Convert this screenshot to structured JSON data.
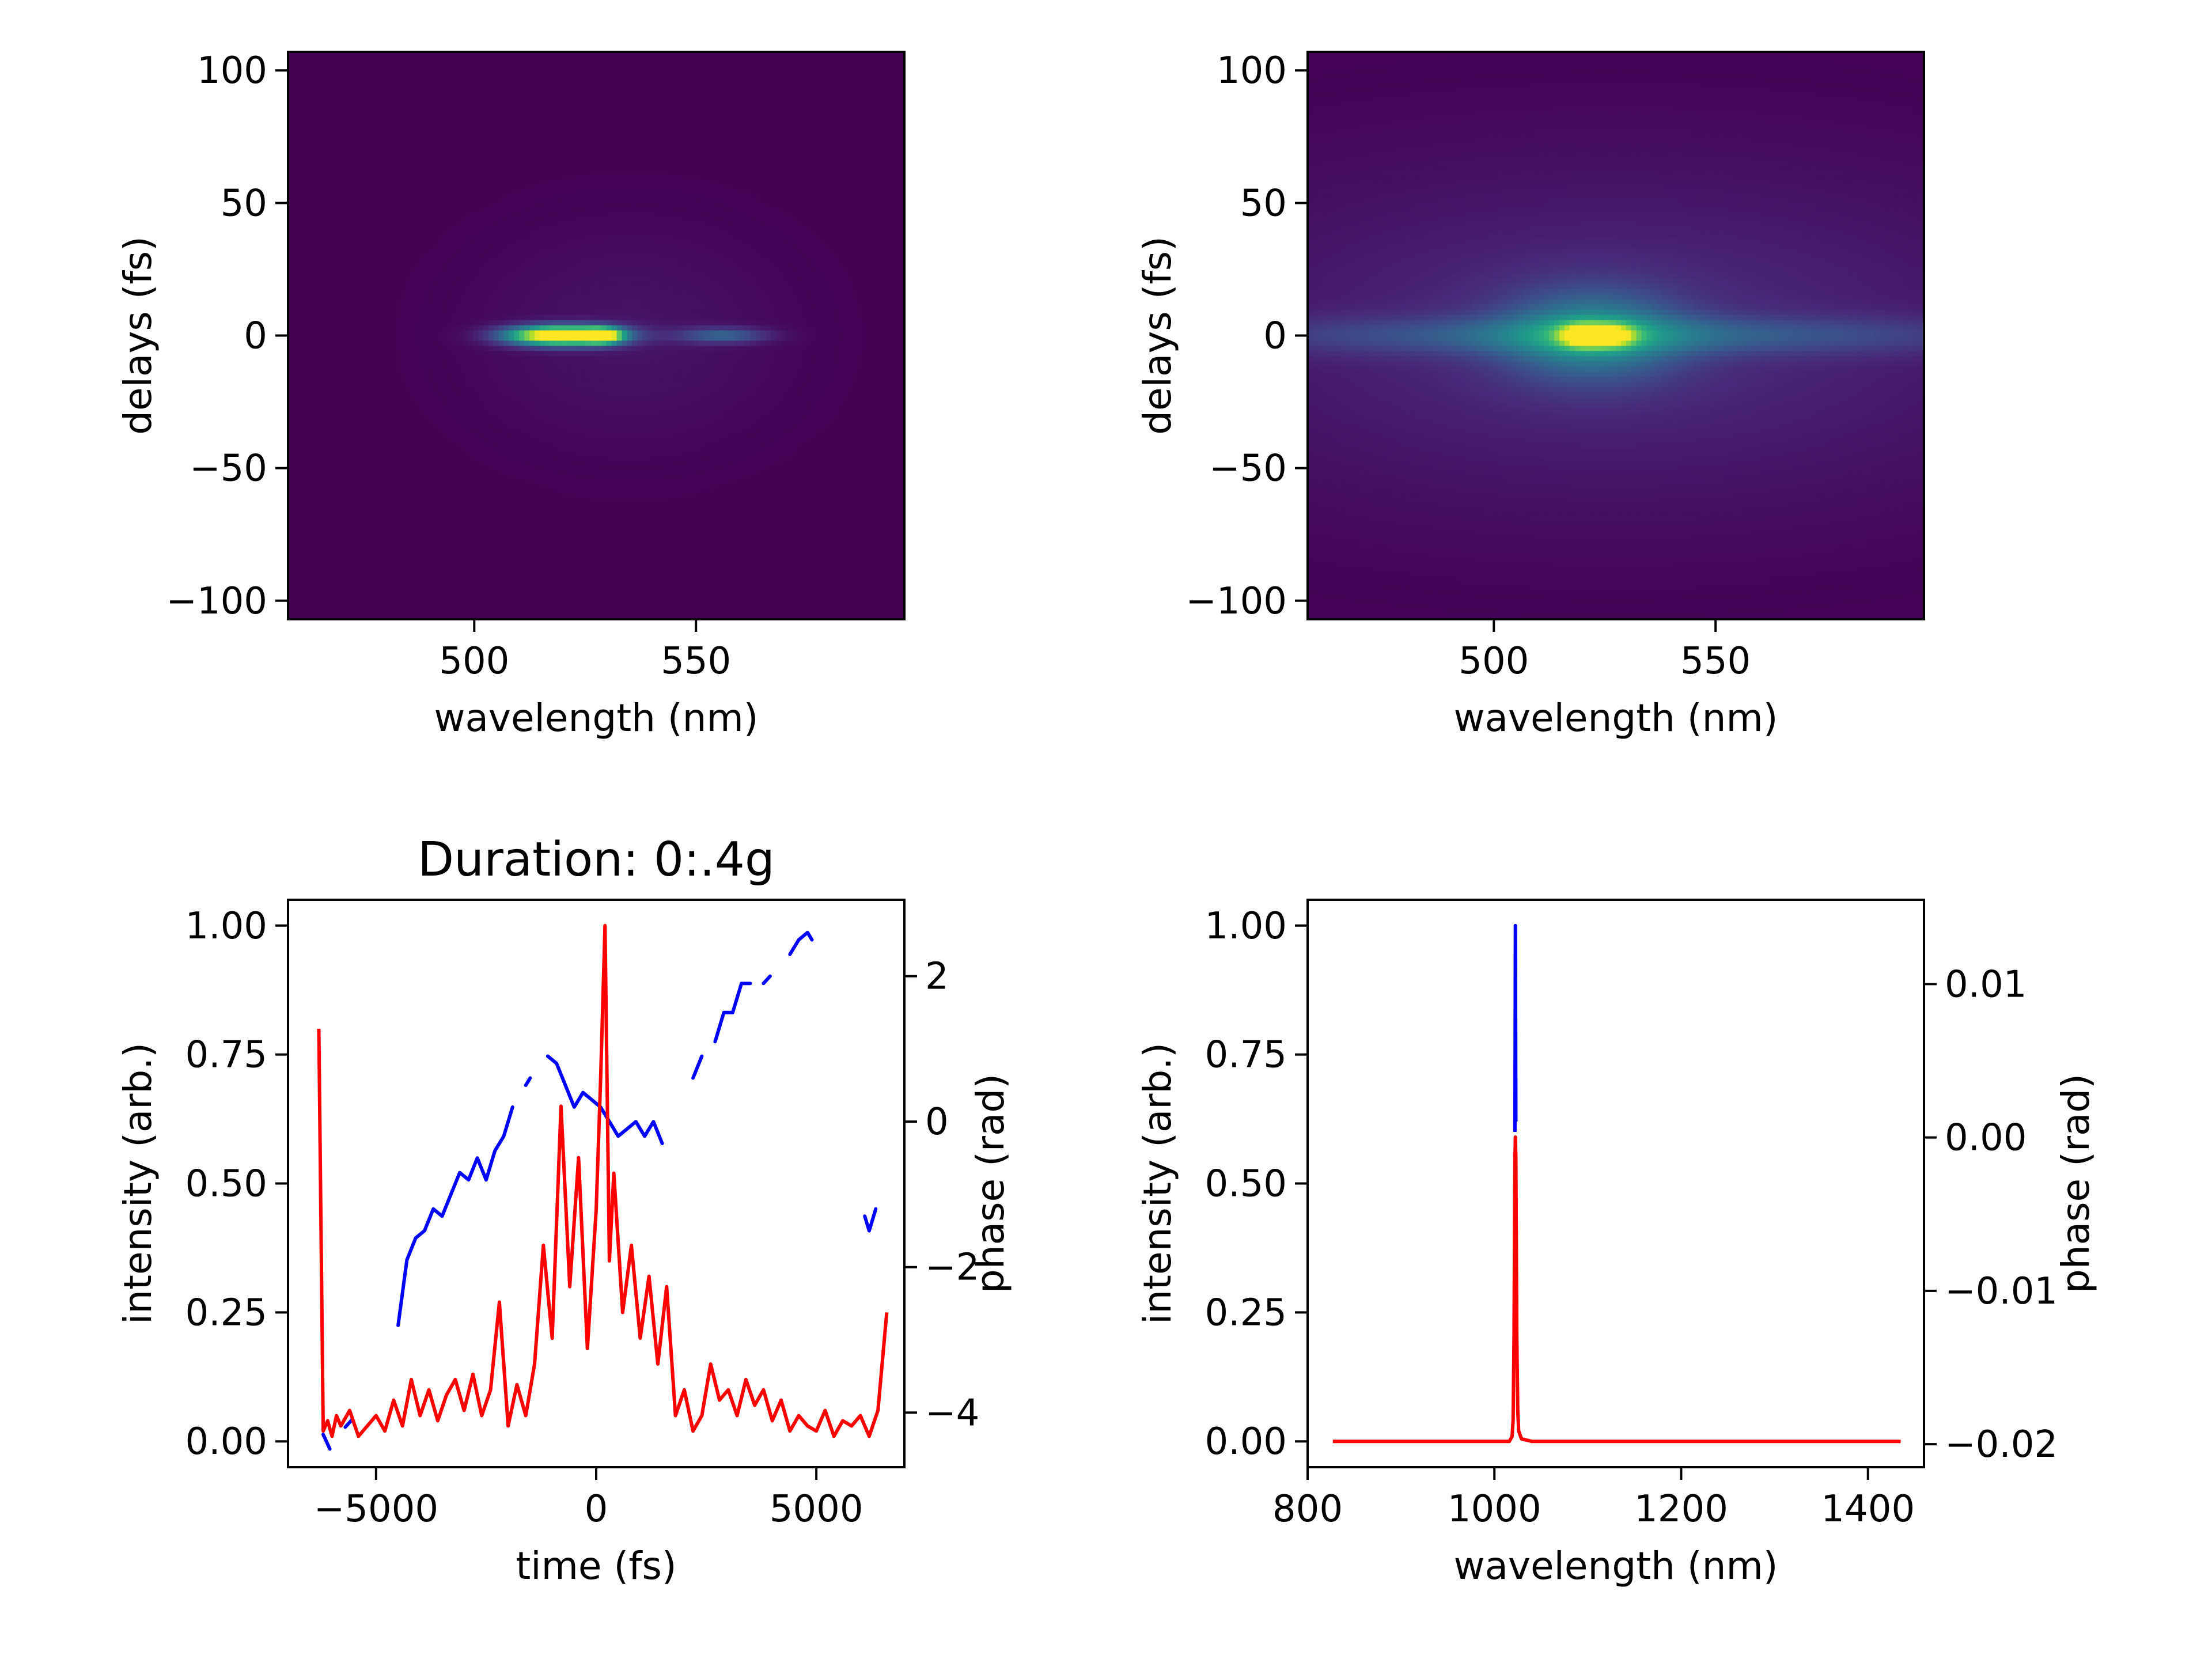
{
  "colors": {
    "intensity_time": "#ff0000",
    "phase_time": "#0000ff",
    "intensity_spec": "#ff0000",
    "phase_spec": "#0000ff",
    "heatmap_low": "#440154",
    "heatmap_mid": "#21918c",
    "heatmap_high": "#fde725",
    "axis": "#000000"
  },
  "chart_data": [
    {
      "id": "measured_trace",
      "type": "heatmap",
      "title": "",
      "xlabel": "wavelength (nm)",
      "ylabel": "delays (fs)",
      "xlim": [
        458,
        597
      ],
      "ylim": [
        -107,
        107
      ],
      "xticks": [
        500,
        550
      ],
      "xtick_labels": [
        "500",
        "550"
      ],
      "yticks": [
        100,
        50,
        0,
        -50,
        -100
      ],
      "ytick_labels": [
        "100",
        "50",
        "0",
        "−50",
        "−100"
      ],
      "colormap": "viridis",
      "features": [
        {
          "x": 515,
          "y": 0,
          "sx": 7,
          "sy": 2.5,
          "amp": 0.55
        },
        {
          "x": 523,
          "y": 0,
          "sx": 8,
          "sy": 2.5,
          "amp": 0.85
        },
        {
          "x": 529,
          "y": 0,
          "sx": 3,
          "sy": 2,
          "amp": 0.7
        },
        {
          "x": 556,
          "y": 0,
          "sx": 7,
          "sy": 2,
          "amp": 0.3
        },
        {
          "x": 535,
          "y": 0,
          "sx": 24,
          "sy": 28,
          "amp": 0.05
        }
      ]
    },
    {
      "id": "retrieved_trace",
      "type": "heatmap",
      "title": "",
      "xlabel": "wavelength (nm)",
      "ylabel": "delays (fs)",
      "xlim": [
        458,
        597
      ],
      "ylim": [
        -107,
        107
      ],
      "xticks": [
        500,
        550
      ],
      "xtick_labels": [
        "500",
        "550"
      ],
      "yticks": [
        100,
        50,
        0,
        -50,
        -100
      ],
      "ytick_labels": [
        "100",
        "50",
        "0",
        "−50",
        "−100"
      ],
      "colormap": "viridis",
      "features": [
        {
          "x": 520,
          "y": 0,
          "sx": 3.5,
          "sy": 2.8,
          "amp": 0.7
        },
        {
          "x": 527,
          "y": 0,
          "sx": 3.5,
          "sy": 2.8,
          "amp": 0.55
        },
        {
          "x": 522,
          "y": 0,
          "sx": 14,
          "sy": 12,
          "amp": 0.38
        },
        {
          "x": 527,
          "y": 0,
          "sx": 60,
          "sy": 5,
          "amp": 0.22
        },
        {
          "x": 527,
          "y": 0,
          "sx": 70,
          "sy": 45,
          "amp": 0.12
        }
      ]
    },
    {
      "id": "temporal",
      "type": "line",
      "title": "Duration: 0:.4g",
      "xlabel": "time (fs)",
      "ylabel": "intensity (arb.)",
      "y2label": "phase (rad)",
      "xlim": [
        -7000,
        7000
      ],
      "ylim": [
        -0.05,
        1.05
      ],
      "y2lim": [
        -4.75,
        3.05
      ],
      "xticks": [
        -5000,
        0,
        5000
      ],
      "xtick_labels": [
        "−5000",
        "0",
        "5000"
      ],
      "yticks": [
        0,
        0.25,
        0.5,
        0.75,
        1.0
      ],
      "ytick_labels": [
        "0.00",
        "0.25",
        "0.50",
        "0.75",
        "1.00"
      ],
      "y2ticks": [
        2,
        0,
        -2,
        -4
      ],
      "y2tick_labels": [
        "2",
        "0",
        "−2",
        "−4"
      ],
      "series": [
        {
          "key": "intensity",
          "axis": "left",
          "x": [
            -6300,
            -6200,
            -6100,
            -6000,
            -5900,
            -5800,
            -5600,
            -5400,
            -5200,
            -5000,
            -4800,
            -4600,
            -4400,
            -4200,
            -4000,
            -3800,
            -3600,
            -3400,
            -3200,
            -3000,
            -2800,
            -2600,
            -2400,
            -2200,
            -2000,
            -1800,
            -1600,
            -1400,
            -1200,
            -1000,
            -800,
            -600,
            -400,
            -200,
            0,
            100,
            200,
            300,
            400,
            600,
            800,
            1000,
            1200,
            1400,
            1600,
            1800,
            2000,
            2200,
            2400,
            2600,
            2800,
            3000,
            3200,
            3400,
            3600,
            3800,
            4000,
            4200,
            4400,
            4600,
            4800,
            5000,
            5200,
            5400,
            5600,
            5800,
            6000,
            6200,
            6400,
            6600
          ],
          "y": [
            0.8,
            0.02,
            0.04,
            0.01,
            0.05,
            0.03,
            0.06,
            0.01,
            0.03,
            0.05,
            0.02,
            0.08,
            0.03,
            0.12,
            0.05,
            0.1,
            0.04,
            0.09,
            0.12,
            0.06,
            0.13,
            0.05,
            0.1,
            0.27,
            0.03,
            0.11,
            0.05,
            0.15,
            0.38,
            0.2,
            0.65,
            0.3,
            0.55,
            0.18,
            0.45,
            0.7,
            1.0,
            0.35,
            0.52,
            0.25,
            0.38,
            0.2,
            0.32,
            0.15,
            0.3,
            0.05,
            0.1,
            0.02,
            0.05,
            0.15,
            0.08,
            0.1,
            0.05,
            0.12,
            0.07,
            0.1,
            0.04,
            0.08,
            0.02,
            0.05,
            0.03,
            0.02,
            0.06,
            0.01,
            0.04,
            0.03,
            0.05,
            0.01,
            0.06,
            0.25
          ]
        },
        {
          "key": "phase",
          "axis": "right",
          "segments": [
            {
              "x": [
                -6200,
                -6050
              ],
              "y": [
                -4.3,
                -4.5
              ]
            },
            {
              "x": [
                -5700,
                -5550
              ],
              "y": [
                -4.2,
                -4.1
              ]
            },
            {
              "x": [
                -4500,
                -4300,
                -4100,
                -3900,
                -3700,
                -3500,
                -3300,
                -3100,
                -2900,
                -2700,
                -2500,
                -2300,
                -2100,
                -1900
              ],
              "y": [
                -2.8,
                -1.9,
                -1.6,
                -1.5,
                -1.2,
                -1.3,
                -1.0,
                -0.7,
                -0.8,
                -0.5,
                -0.8,
                -0.4,
                -0.2,
                0.2
              ]
            },
            {
              "x": [
                -1600,
                -1500
              ],
              "y": [
                0.5,
                0.6
              ]
            },
            {
              "x": [
                -1100,
                -900,
                -700,
                -500,
                -300,
                -100,
                100,
                300,
                500,
                700,
                900,
                1100,
                1300,
                1500
              ],
              "y": [
                0.9,
                0.8,
                0.5,
                0.2,
                0.4,
                0.3,
                0.2,
                0.0,
                -0.2,
                -0.1,
                0.0,
                -0.2,
                0.0,
                -0.3
              ]
            },
            {
              "x": [
                2200,
                2400
              ],
              "y": [
                0.6,
                0.9
              ]
            },
            {
              "x": [
                2700,
                2900,
                3100,
                3300,
                3500
              ],
              "y": [
                1.1,
                1.5,
                1.5,
                1.9,
                1.9
              ]
            },
            {
              "x": [
                3800,
                3950
              ],
              "y": [
                1.9,
                2.0
              ]
            },
            {
              "x": [
                4400,
                4600,
                4800,
                4900
              ],
              "y": [
                2.3,
                2.5,
                2.6,
                2.5
              ]
            },
            {
              "x": [
                6100,
                6200,
                6350
              ],
              "y": [
                -1.3,
                -1.5,
                -1.2
              ]
            }
          ]
        }
      ]
    },
    {
      "id": "spectral",
      "type": "line",
      "title": "",
      "xlabel": "wavelength (nm)",
      "ylabel": "intensity (arb.)",
      "y2label": "phase (rad)",
      "xlim": [
        800,
        1460
      ],
      "ylim": [
        -0.05,
        1.05
      ],
      "y2lim": [
        -0.0215,
        0.0155
      ],
      "xticks": [
        800,
        1000,
        1200,
        1400
      ],
      "xtick_labels": [
        "800",
        "1000",
        "1200",
        "1400"
      ],
      "yticks": [
        0,
        0.25,
        0.5,
        0.75,
        1.0
      ],
      "ytick_labels": [
        "0.00",
        "0.25",
        "0.50",
        "0.75",
        "1.00"
      ],
      "y2ticks": [
        0.01,
        0.0,
        -0.01,
        -0.02
      ],
      "y2tick_labels": [
        "0.01",
        "0.00",
        "−0.01",
        "−0.02"
      ],
      "series": [
        {
          "key": "phase",
          "axis": "left",
          "x": [
            1022,
            1022.5,
            1023
          ],
          "y": [
            0.6,
            1.0,
            0.62
          ]
        },
        {
          "key": "intensity",
          "axis": "left",
          "x": [
            827,
            1000,
            1016,
            1019,
            1020,
            1021,
            1022,
            1022.5,
            1023,
            1024,
            1025,
            1026,
            1029,
            1040,
            1435
          ],
          "y": [
            0,
            0,
            0,
            0.01,
            0.04,
            0.2,
            0.55,
            0.59,
            0.55,
            0.2,
            0.06,
            0.02,
            0.005,
            0,
            0
          ]
        }
      ]
    }
  ]
}
